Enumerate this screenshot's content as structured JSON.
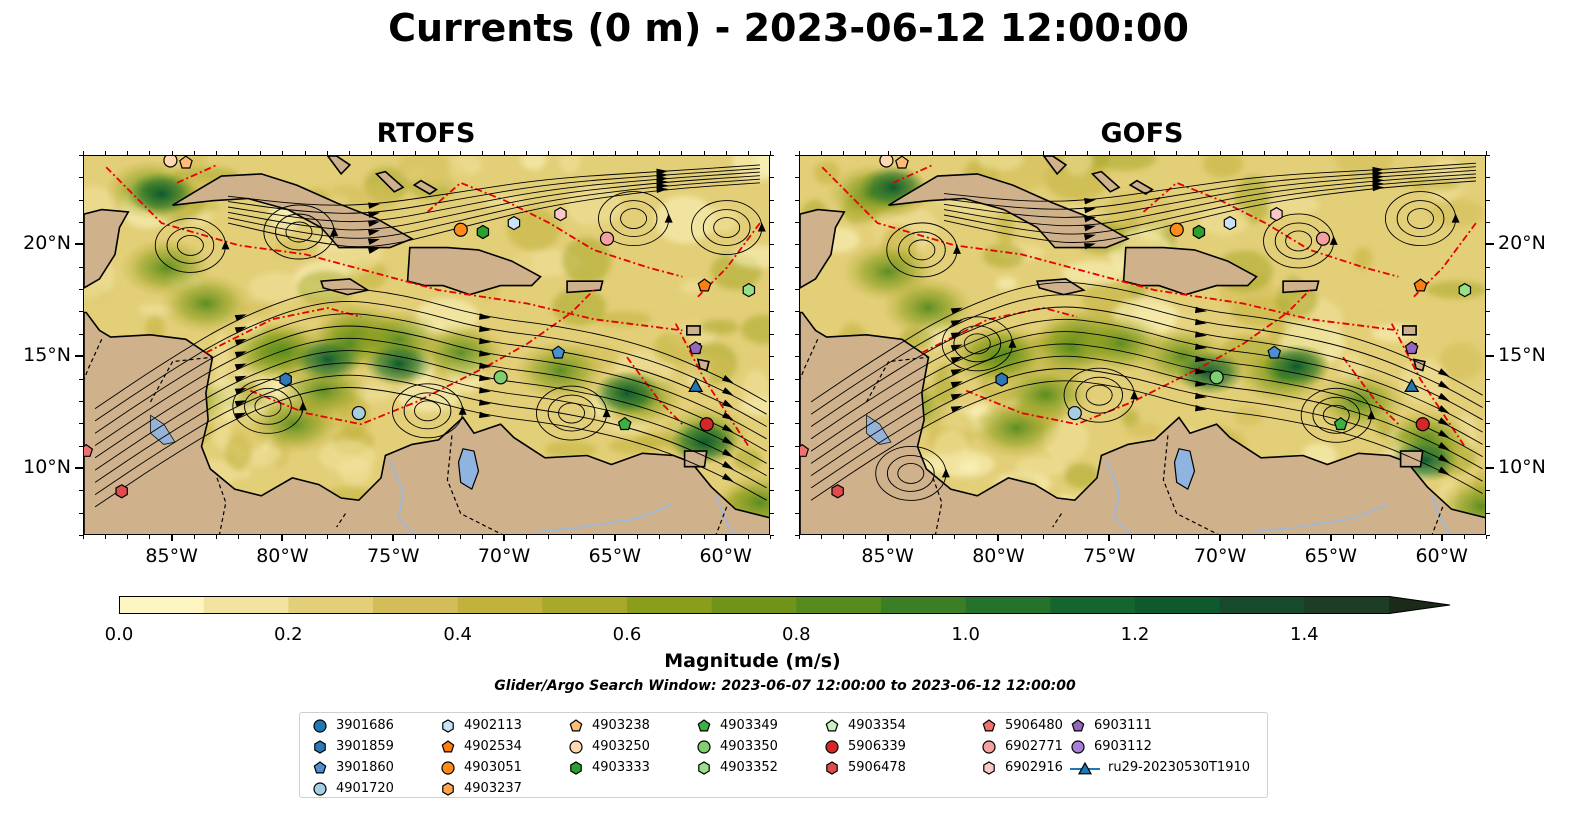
{
  "title": "Currents (0 m) - 2023-06-12 12:00:00",
  "panels": [
    {
      "name": "RTOFS"
    },
    {
      "name": "GOFS"
    }
  ],
  "colors": {
    "land": "#cfb18c",
    "lake": "#8fb4e0",
    "rivers": "#9fb8d6",
    "front_lines": "#e60000",
    "streamlines": "#000000"
  },
  "axes": {
    "lon_range": [
      -89,
      -58
    ],
    "lat_range": [
      7,
      24
    ],
    "x_ticks": [
      "85°W",
      "80°W",
      "75°W",
      "70°W",
      "65°W",
      "60°W"
    ],
    "x_tick_values": [
      -85,
      -80,
      -75,
      -70,
      -65,
      -60
    ],
    "y_ticks": [
      "20°N",
      "15°N",
      "10°N"
    ],
    "y_tick_values": [
      20,
      15,
      10
    ]
  },
  "colorbar": {
    "label": "Magnitude (m/s)",
    "ticks": [
      "0.0",
      "0.2",
      "0.4",
      "0.6",
      "0.8",
      "1.0",
      "1.2",
      "1.4"
    ],
    "tick_values": [
      0.0,
      0.2,
      0.4,
      0.6,
      0.8,
      1.0,
      1.2,
      1.4
    ],
    "range": [
      0.0,
      1.5
    ],
    "extend": "max",
    "colors": [
      "#fdf6c2",
      "#f2e3a0",
      "#e3cf78",
      "#d3bd58",
      "#c1b23d",
      "#a8a82b",
      "#8a9e1c",
      "#6f9419",
      "#558a1f",
      "#3c7e26",
      "#24722c",
      "#15652e",
      "#0e5a2e",
      "#174a2c",
      "#1e3d27",
      "#1c2a1a"
    ]
  },
  "search_window": "Glider/Argo Search Window: 2023-06-07 12:00:00 to 2023-06-12 12:00:00",
  "legend": {
    "columns": [
      [
        {
          "label": "3901686",
          "marker": "circle",
          "color": "#1f77b4"
        },
        {
          "label": "3901859",
          "marker": "hexagon",
          "color": "#2f78b8"
        },
        {
          "label": "3901860",
          "marker": "pentagon",
          "color": "#4a90d0"
        },
        {
          "label": "4901720",
          "marker": "circle",
          "color": "#a6cee3"
        }
      ],
      [
        {
          "label": "4902113",
          "marker": "hexagon",
          "color": "#c6e3f7"
        },
        {
          "label": "4902534",
          "marker": "pentagon",
          "color": "#ff7f0e"
        },
        {
          "label": "4903051",
          "marker": "circle",
          "color": "#ff8c1a"
        },
        {
          "label": "4903237",
          "marker": "hexagon",
          "color": "#ffa54d"
        }
      ],
      [
        {
          "label": "4903238",
          "marker": "pentagon",
          "color": "#ffbb78"
        },
        {
          "label": "4903250",
          "marker": "circle",
          "color": "#ffd8b1"
        },
        {
          "label": "4903333",
          "marker": "hexagon",
          "color": "#2ca02c"
        }
      ],
      [
        {
          "label": "4903349",
          "marker": "pentagon",
          "color": "#3cb043"
        },
        {
          "label": "4903350",
          "marker": "circle",
          "color": "#7fce6f"
        },
        {
          "label": "4903352",
          "marker": "hexagon",
          "color": "#98df8a"
        }
      ],
      [
        {
          "label": "4903354",
          "marker": "pentagon",
          "color": "#c7f2c0"
        },
        {
          "label": "5906339",
          "marker": "circle",
          "color": "#d62728"
        },
        {
          "label": "5906478",
          "marker": "hexagon",
          "color": "#e04c4c"
        }
      ],
      [
        {
          "label": "5906480",
          "marker": "pentagon",
          "color": "#f07070"
        },
        {
          "label": "6902771",
          "marker": "circle",
          "color": "#f4a0a0"
        },
        {
          "label": "6902916",
          "marker": "hexagon",
          "color": "#fbc8c8"
        }
      ],
      [
        {
          "label": "6903111",
          "marker": "pentagon",
          "color": "#9467bd"
        },
        {
          "label": "6903112",
          "marker": "circle",
          "color": "#a77fd4"
        },
        {
          "label": "ru29-20230530T1910",
          "marker": "triangle-line",
          "color": "#1f77b4"
        }
      ]
    ]
  },
  "markers": [
    {
      "id": "4903238",
      "lon": -84.4,
      "lat": 23.7
    },
    {
      "id": "4903250",
      "lon": -85.1,
      "lat": 23.8
    },
    {
      "id": "4903051",
      "lon": -72.0,
      "lat": 20.7
    },
    {
      "id": "4903333",
      "lon": -71.0,
      "lat": 20.6
    },
    {
      "id": "4902113",
      "lon": -69.6,
      "lat": 21.0
    },
    {
      "id": "6902916",
      "lon": -67.5,
      "lat": 21.4
    },
    {
      "id": "6902771",
      "lon": -65.4,
      "lat": 20.3
    },
    {
      "id": "4902534",
      "lon": -61.0,
      "lat": 18.2
    },
    {
      "id": "4903352",
      "lon": -59.0,
      "lat": 18.0
    },
    {
      "id": "3901860",
      "lon": -67.6,
      "lat": 15.2
    },
    {
      "id": "6903111",
      "lon": -61.4,
      "lat": 15.4
    },
    {
      "id": "4903350",
      "lon": -70.2,
      "lat": 14.1
    },
    {
      "id": "3901859",
      "lon": -79.9,
      "lat": 14.0
    },
    {
      "id": "4901720",
      "lon": -76.6,
      "lat": 12.5
    },
    {
      "id": "ru29-20230530T1910",
      "lon": -61.4,
      "lat": 13.7
    },
    {
      "id": "4903349",
      "lon": -64.6,
      "lat": 12.0
    },
    {
      "id": "5906339",
      "lon": -60.9,
      "lat": 12.0
    },
    {
      "id": "5906480",
      "lon": -88.9,
      "lat": 10.8
    },
    {
      "id": "5906478",
      "lon": -87.3,
      "lat": 9.0
    }
  ]
}
